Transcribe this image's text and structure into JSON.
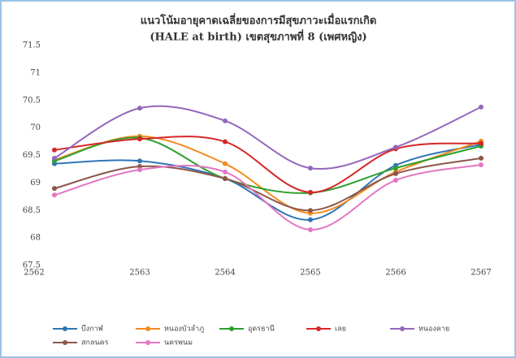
{
  "chart_data": {
    "type": "line",
    "title": "แนวโน้มอายุคาดเฉลี่ยของการมีสุขภาวะเมื่อแรกเกิด",
    "subtitle": "(HALE at birth) เขตสุขภาพที่ 8 (เพศหญิง)",
    "categories": [
      "2562",
      "2563",
      "2564",
      "2565",
      "2566",
      "2567"
    ],
    "ylim": [
      67.5,
      71.5
    ],
    "yticks": [
      67.5,
      68,
      68.5,
      69,
      69.5,
      70,
      70.5,
      71,
      71.5
    ],
    "smooth": true,
    "series": [
      {
        "name": "บึงกาฬ",
        "color": "#2e75b6",
        "values": [
          69.35,
          69.4,
          69.08,
          68.33,
          69.32,
          69.7
        ]
      },
      {
        "name": "หนองบัวลำภู",
        "color": "#f58a1f",
        "values": [
          69.42,
          69.85,
          69.35,
          68.45,
          69.2,
          69.76
        ]
      },
      {
        "name": "อุดรธานี",
        "color": "#2ca02c",
        "values": [
          69.4,
          69.82,
          69.08,
          68.82,
          69.27,
          69.67
        ]
      },
      {
        "name": "เลย",
        "color": "#d62728",
        "values": [
          69.6,
          69.8,
          69.75,
          68.83,
          69.62,
          69.72
        ]
      },
      {
        "name": "หนองคาย",
        "color": "#9467bd",
        "values": [
          69.45,
          70.36,
          70.13,
          69.27,
          69.65,
          70.38
        ]
      },
      {
        "name": "สกลนคร",
        "color": "#8c564b",
        "values": [
          68.9,
          69.3,
          69.08,
          68.5,
          69.17,
          69.45
        ]
      },
      {
        "name": "นครพนม",
        "color": "#e377c2",
        "values": [
          68.78,
          69.24,
          69.2,
          68.15,
          69.05,
          69.33
        ]
      }
    ]
  }
}
